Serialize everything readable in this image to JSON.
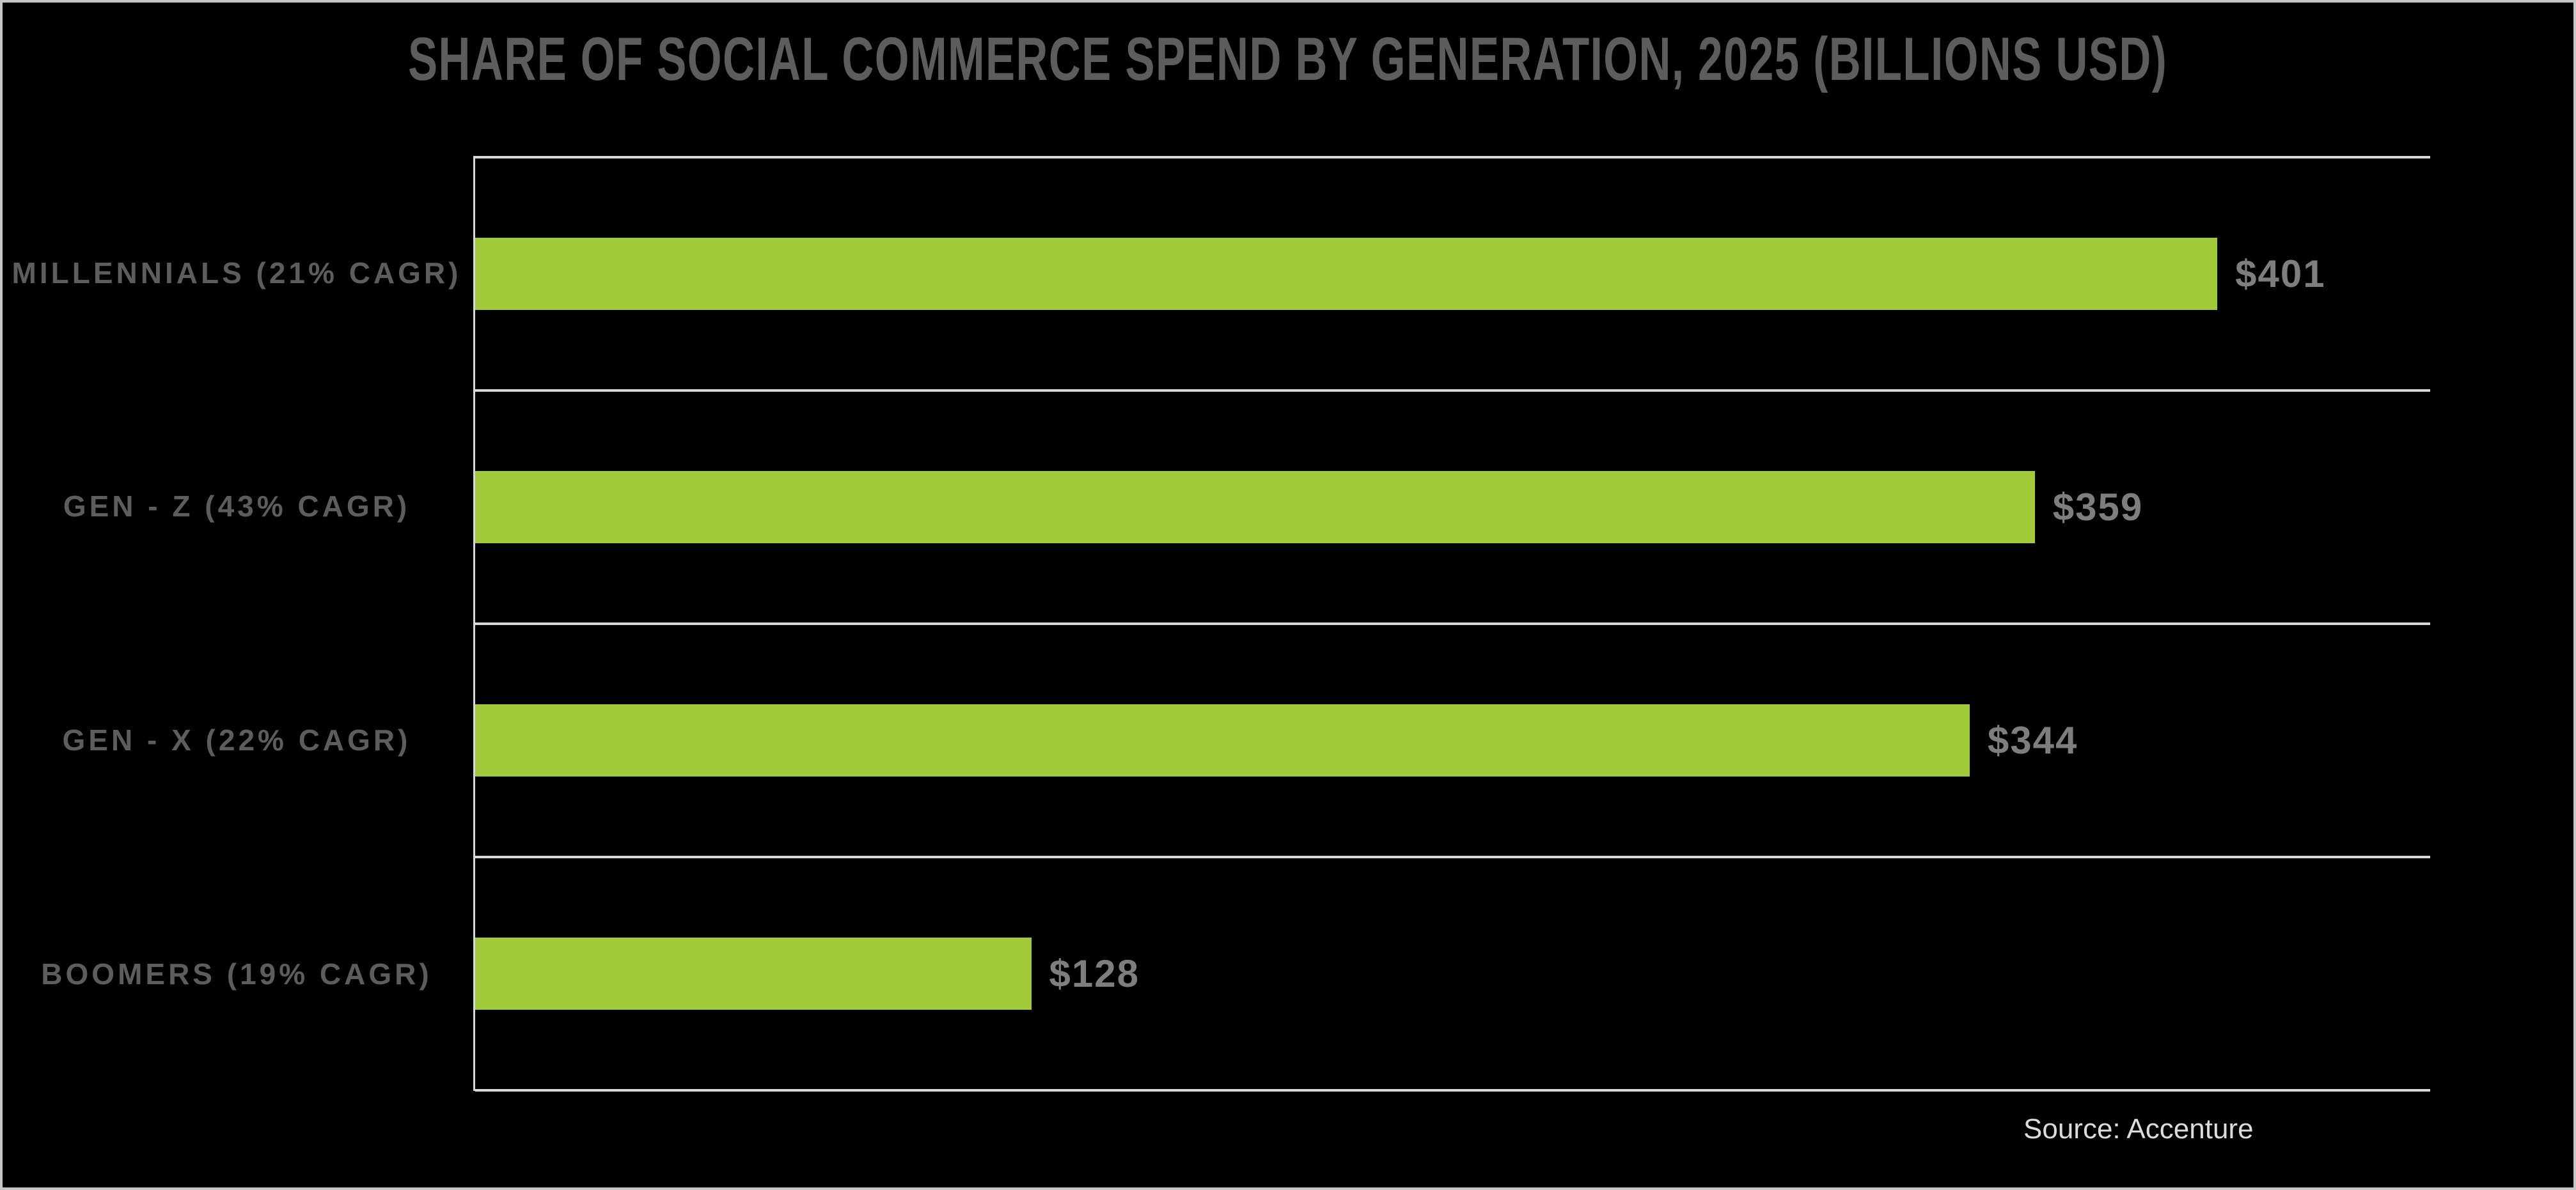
{
  "page": {
    "title": "SHARE OF SOCIAL COMMERCE SPEND BY GENERATION, 2025 (BILLIONS USD)"
  },
  "colors": {
    "background": "#000000",
    "border": "#C6C6C6",
    "title": "#5D5D5D",
    "label": "#5D5D5D",
    "value_label": "#7E7E7E",
    "bar": "#A2CB3A",
    "gridline": "#D8D8D8",
    "source": "#DCDCDC"
  },
  "chart_data": {
    "type": "bar",
    "orientation": "horizontal",
    "title": "SHARE OF SOCIAL COMMERCE SPEND BY GENERATION, 2025 (BILLIONS USD)",
    "categories": [
      "MILLENNIALS (21% CAGR)",
      "GEN - Z (43% CAGR)",
      "GEN - X (22% CAGR)",
      "BOOMERS (19% CAGR)"
    ],
    "values": [
      401,
      359,
      344,
      128
    ],
    "value_labels": [
      "$401",
      "$359",
      "$344",
      "$128"
    ],
    "xlabel": "",
    "ylabel": "",
    "xlim": [
      0,
      450
    ],
    "grid": "category dividers only, no value gridlines, no value axis ticks",
    "legend": "none",
    "source": "Source: Accenture"
  }
}
